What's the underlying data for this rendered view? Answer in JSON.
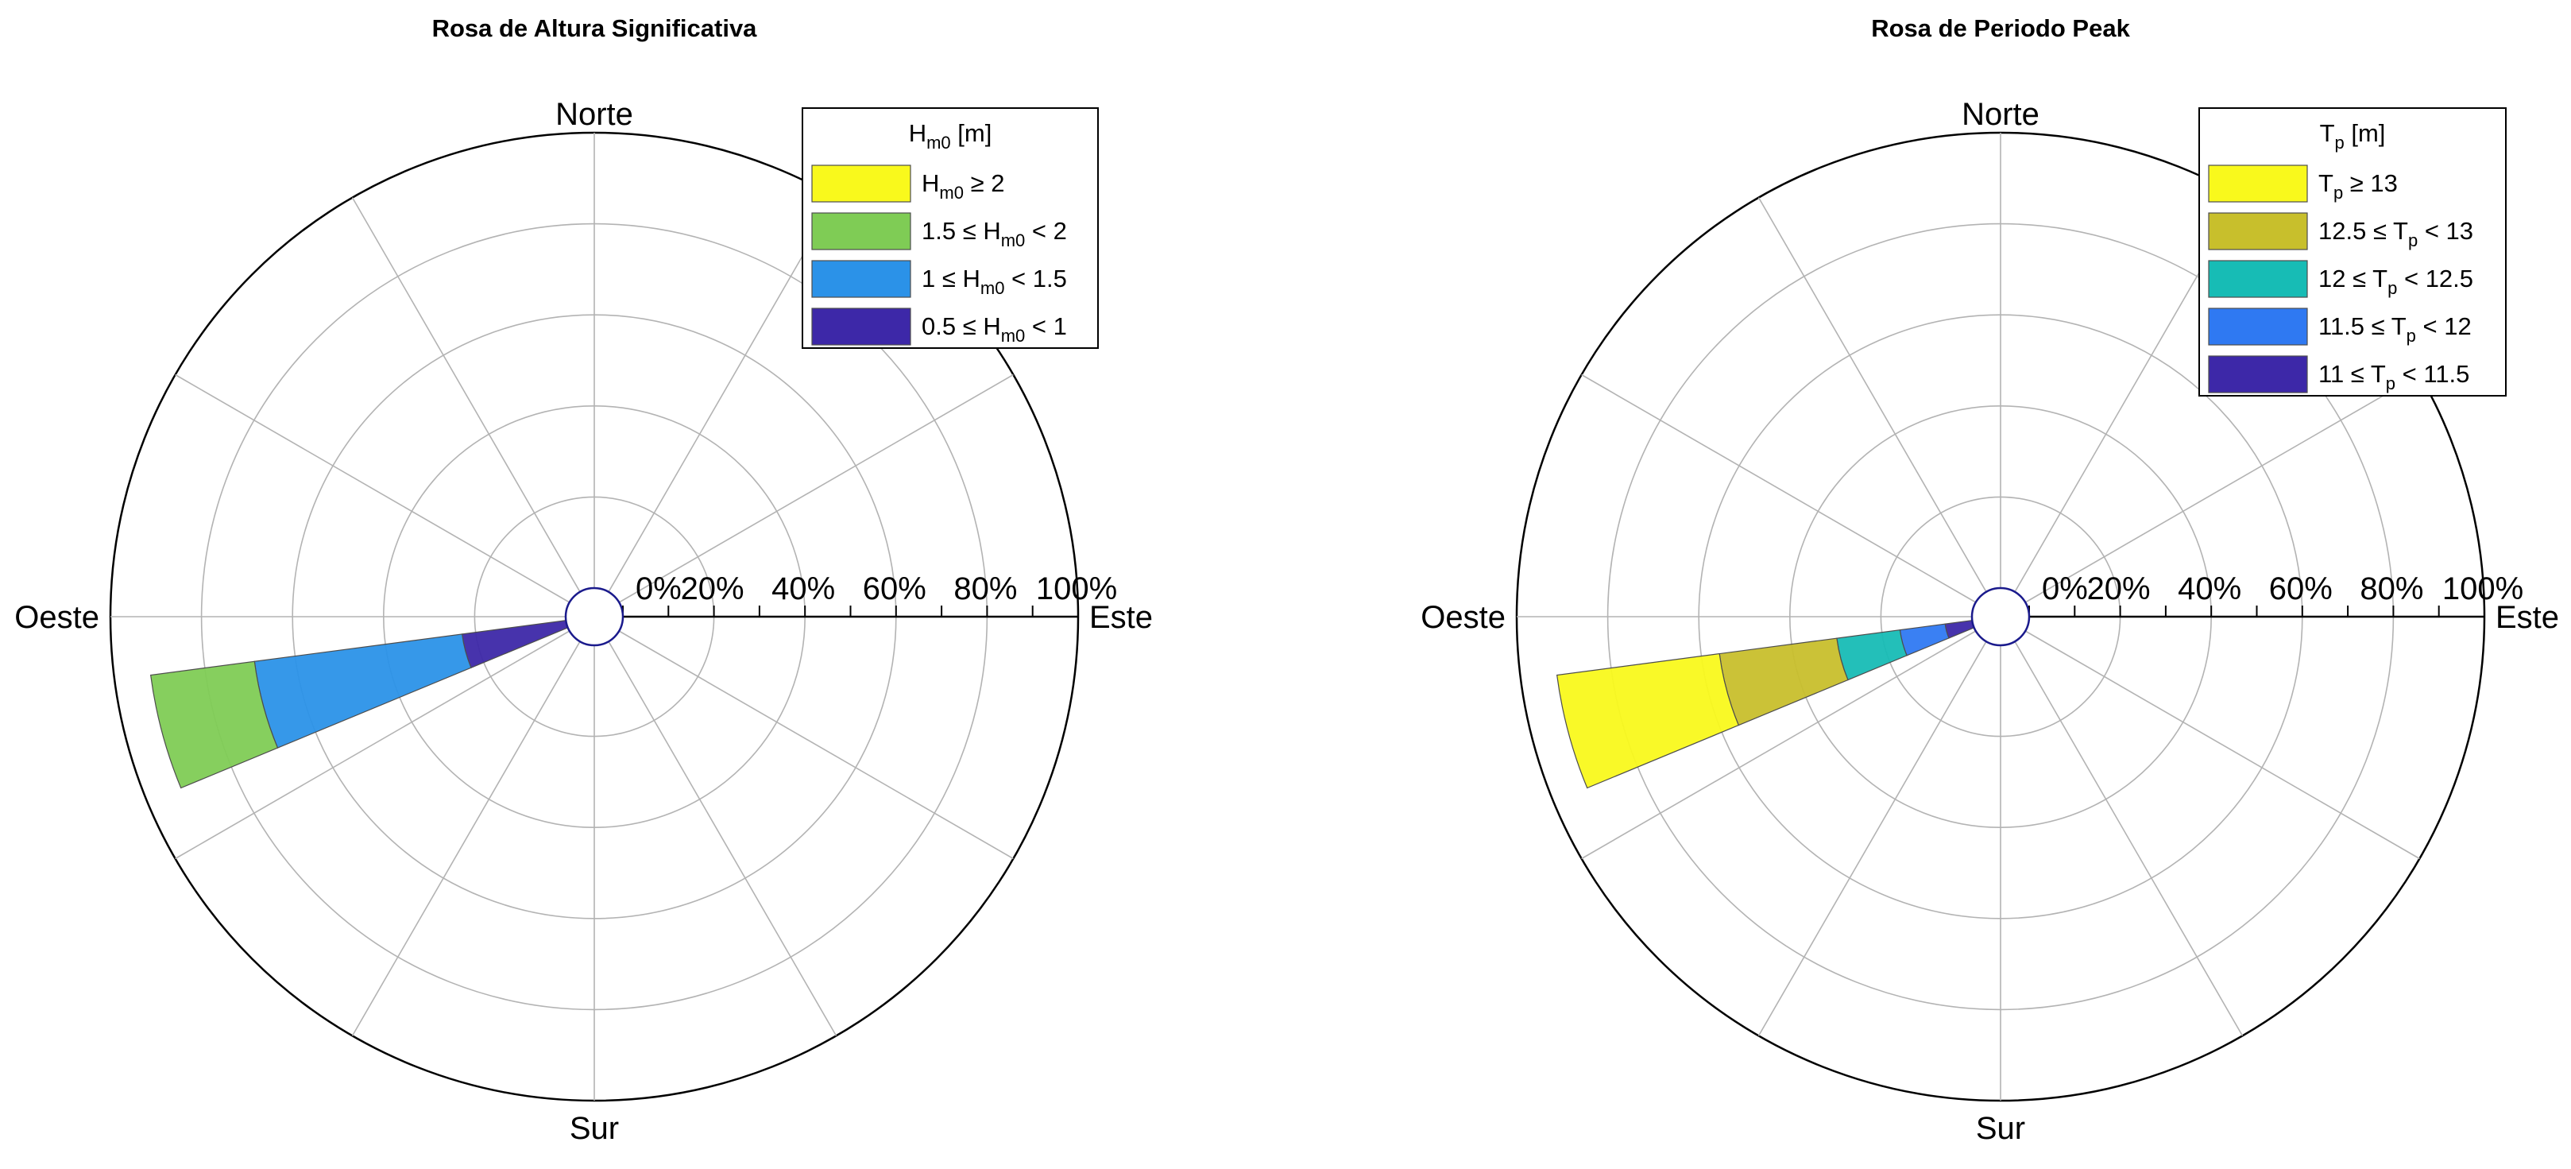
{
  "chart_data": [
    {
      "type": "polar-stacked-bar",
      "title": "Rosa de Altura Significativa",
      "direction_labels": {
        "north": "Norte",
        "east": "Este",
        "south": "Sur",
        "west": "Oeste"
      },
      "radial_tick_labels": [
        "0%",
        "20%",
        "40%",
        "60%",
        "80%",
        "100%"
      ],
      "radial_range": [
        0,
        100
      ],
      "grid": true,
      "legend_placement": "top-right",
      "legend_title": {
        "text": "H",
        "sub": "m0",
        "after": " [m]"
      },
      "sectors": [
        {
          "from_deg": 247.5,
          "to_deg": 262.5
        }
      ],
      "series": [
        {
          "color": "#3d28a8",
          "value": 23,
          "label_parts": [
            [
              "0.5 ≤ H",
              ""
            ],
            [
              "m0",
              "sub"
            ],
            [
              " < 1",
              ""
            ]
          ]
        },
        {
          "color": "#2b92e8",
          "value": 46,
          "label_parts": [
            [
              "1 ≤ H",
              ""
            ],
            [
              "m0",
              "sub"
            ],
            [
              " < 1.5",
              ""
            ]
          ]
        },
        {
          "color": "#7fcc55",
          "value": 23,
          "label_parts": [
            [
              "1.5 ≤ H",
              ""
            ],
            [
              "m0",
              "sub"
            ],
            [
              " < 2",
              ""
            ]
          ]
        },
        {
          "color": "#f9f91c",
          "value": 0,
          "label_parts": [
            [
              "H",
              ""
            ],
            [
              "m0",
              "sub"
            ],
            [
              " ≥ 2",
              ""
            ]
          ]
        }
      ]
    },
    {
      "type": "polar-stacked-bar",
      "title": "Rosa de Periodo Peak",
      "direction_labels": {
        "north": "Norte",
        "east": "Este",
        "south": "Sur",
        "west": "Oeste"
      },
      "radial_tick_labels": [
        "0%",
        "20%",
        "40%",
        "60%",
        "80%",
        "100%"
      ],
      "radial_range": [
        0,
        100
      ],
      "grid": true,
      "legend_placement": "top-right",
      "legend_title": {
        "text": "T",
        "sub": "p",
        "after": " [m]"
      },
      "sectors": [
        {
          "from_deg": 247.5,
          "to_deg": 262.5
        }
      ],
      "series": [
        {
          "color": "#3d28a8",
          "value": 6,
          "label_parts": [
            [
              "11 ≤ T",
              ""
            ],
            [
              "p",
              "sub"
            ],
            [
              " < 11.5",
              ""
            ]
          ]
        },
        {
          "color": "#2f79f2",
          "value": 10,
          "label_parts": [
            [
              "11.5 ≤ T",
              ""
            ],
            [
              "p",
              "sub"
            ],
            [
              " < 12",
              ""
            ]
          ]
        },
        {
          "color": "#17bcb5",
          "value": 14,
          "label_parts": [
            [
              "12 ≤ T",
              ""
            ],
            [
              "p",
              "sub"
            ],
            [
              " < 12.5",
              ""
            ]
          ]
        },
        {
          "color": "#c8bf2c",
          "value": 26,
          "label_parts": [
            [
              "12.5 ≤ T",
              ""
            ],
            [
              "p",
              "sub"
            ],
            [
              " < 13",
              ""
            ]
          ]
        },
        {
          "color": "#f9f91c",
          "value": 36,
          "label_parts": [
            [
              "T",
              ""
            ],
            [
              "p",
              "sub"
            ],
            [
              " ≥ 13",
              ""
            ]
          ]
        }
      ]
    }
  ]
}
